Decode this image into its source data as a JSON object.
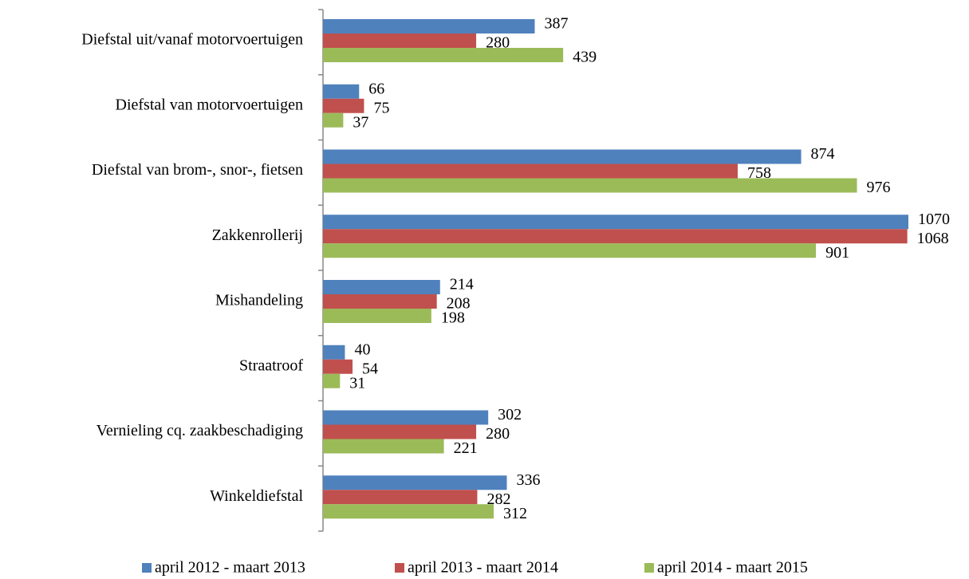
{
  "chart_data": {
    "type": "bar",
    "orientation": "horizontal",
    "categories": [
      "Diefstal uit/vanaf motorvoertuigen",
      "Diefstal van motorvoertuigen",
      "Diefstal van brom-, snor-, fietsen",
      "Zakkenrollerij",
      "Mishandeling",
      "Straatroof",
      "Vernieling cq. zaakbeschadiging",
      "Winkeldiefstal"
    ],
    "series": [
      {
        "name": "april 2012 - maart 2013",
        "color": "#4f81bd",
        "values": [
          387,
          66,
          874,
          1070,
          214,
          40,
          302,
          336
        ]
      },
      {
        "name": "april 2013 - maart 2014",
        "color": "#c0504d",
        "values": [
          280,
          75,
          758,
          1068,
          208,
          54,
          280,
          282
        ]
      },
      {
        "name": "april 2014 - maart 2015",
        "color": "#9bbb59",
        "values": [
          439,
          37,
          976,
          901,
          198,
          31,
          221,
          312
        ]
      }
    ],
    "legend": "bottom"
  }
}
